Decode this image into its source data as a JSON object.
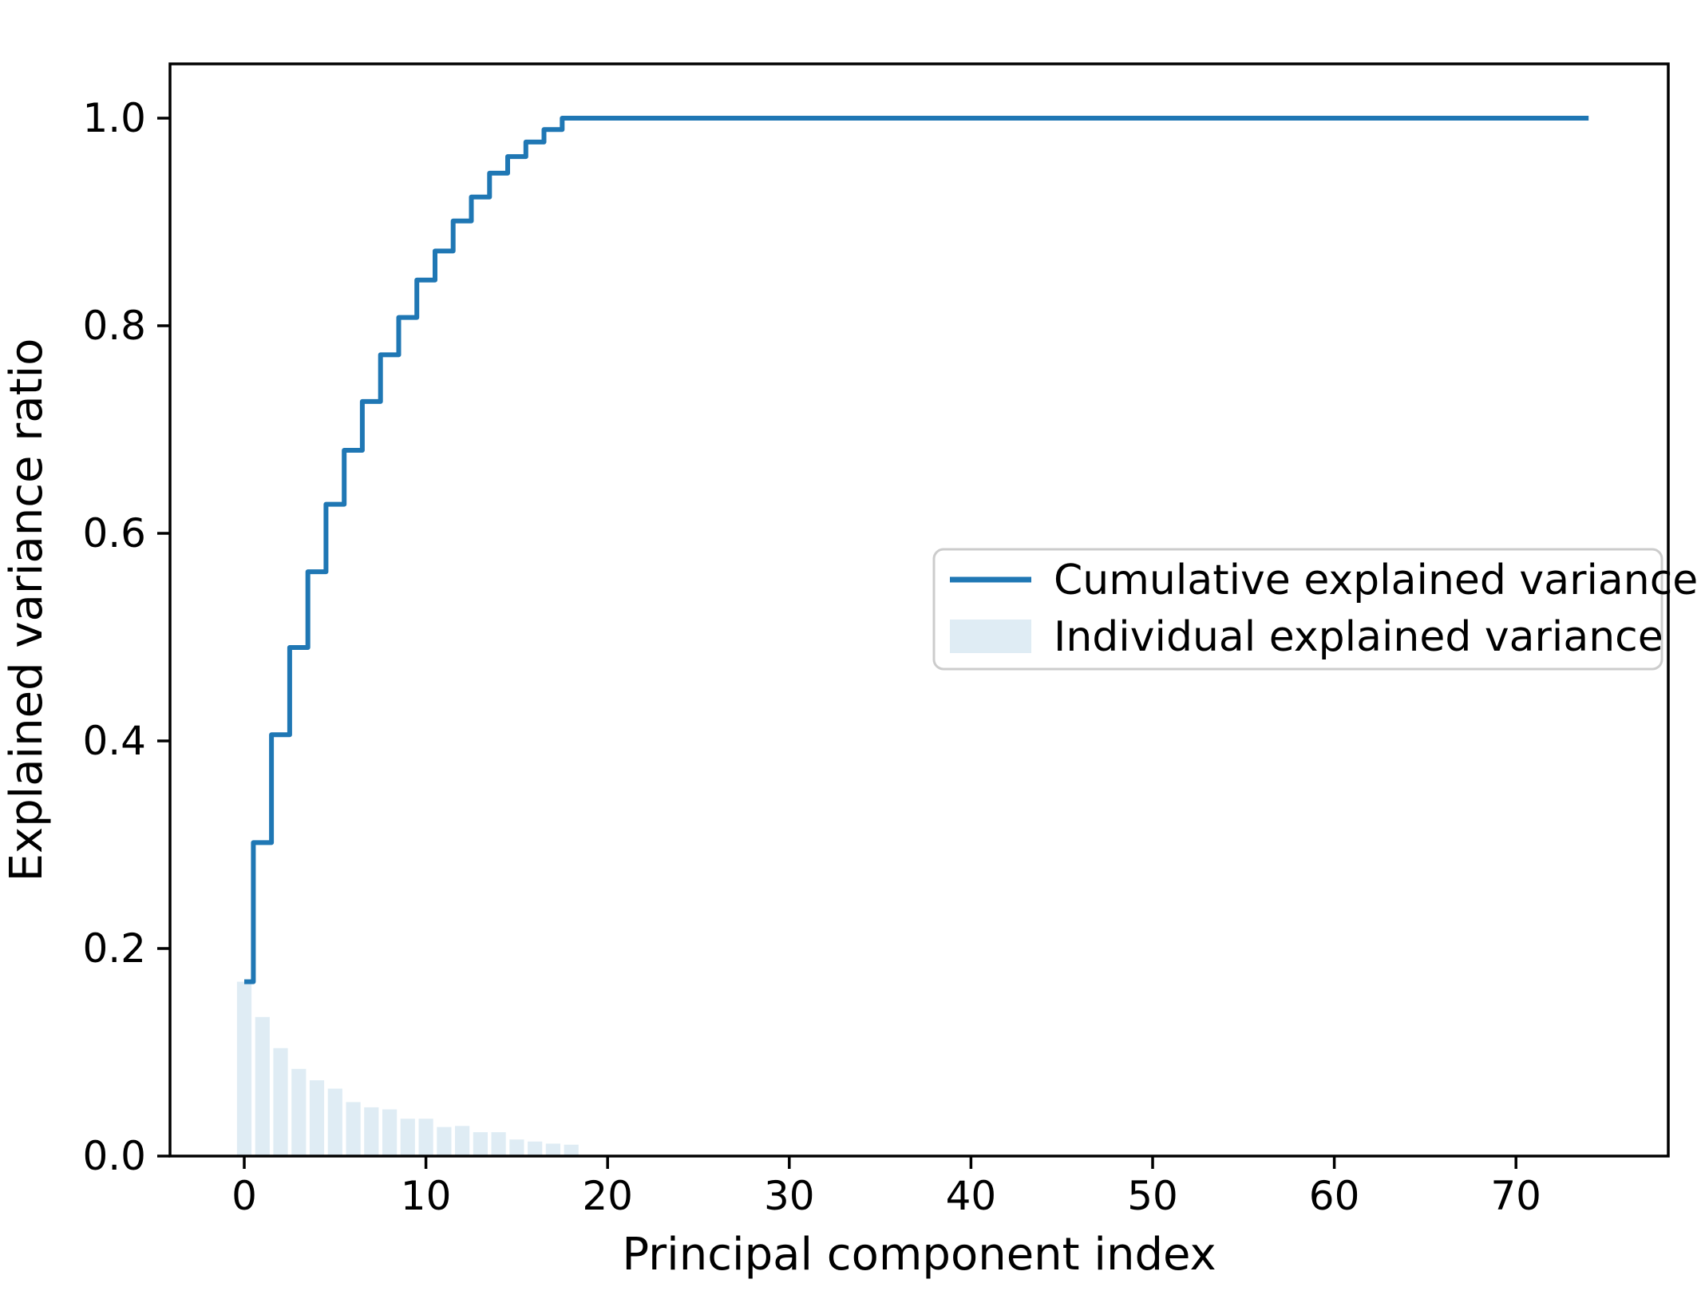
{
  "chart_data": {
    "type": "line",
    "title": "",
    "xlabel": "Principal component index",
    "ylabel": "Explained variance ratio",
    "x_ticks": [
      0,
      10,
      20,
      30,
      40,
      50,
      60,
      70
    ],
    "y_ticks": [
      "0.0",
      "0.2",
      "0.4",
      "0.6",
      "0.8",
      "1.0"
    ],
    "xlim": [
      -4.1,
      78.3
    ],
    "ylim": [
      0.0,
      1.052
    ],
    "grid": false,
    "total_components_shown": 75,
    "line_flat_to_x": 74,
    "categories": [
      0,
      1,
      2,
      3,
      4,
      5,
      6,
      7,
      8,
      9,
      10,
      11,
      12,
      13,
      14,
      15,
      16,
      17,
      18
    ],
    "series": [
      {
        "name": "Cumulative explained variance",
        "type": "step-mid",
        "color": "#1f77b4",
        "values": [
          0.168,
          0.302,
          0.406,
          0.49,
          0.563,
          0.628,
          0.68,
          0.727,
          0.772,
          0.808,
          0.844,
          0.872,
          0.901,
          0.924,
          0.947,
          0.963,
          0.977,
          0.989,
          1.0
        ]
      },
      {
        "name": "Individual explained variance",
        "type": "bar",
        "color": "rgba(31,119,180,0.14)",
        "bar_width_units": 0.8,
        "values": [
          0.168,
          0.134,
          0.104,
          0.084,
          0.073,
          0.065,
          0.052,
          0.047,
          0.045,
          0.036,
          0.036,
          0.028,
          0.029,
          0.023,
          0.023,
          0.016,
          0.014,
          0.012,
          0.011
        ]
      }
    ],
    "legend": {
      "position": "center-right",
      "border_color": "#cccccc",
      "background_color": "#ffffff",
      "entries": [
        "Cumulative explained variance",
        "Individual explained variance"
      ]
    },
    "frame_color": "#000000"
  }
}
